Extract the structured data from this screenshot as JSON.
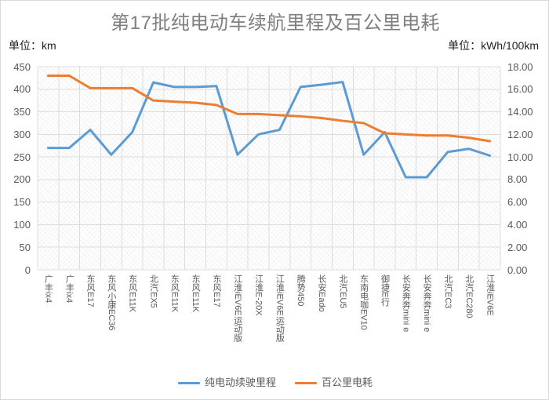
{
  "title": "第17批纯电动车续航里程及百公里电耗",
  "unit_left": "单位：km",
  "unit_right": "单位：kWh/100km",
  "colors": {
    "range_series": "#5B9BD5",
    "consumption_series": "#ED7D31",
    "gridline": "#dcdcdc",
    "title_text": "#7f7f7f",
    "axis_text": "#595959"
  },
  "chart_data": {
    "type": "line",
    "categories": [
      "广丰ix4",
      "广丰ix4",
      "东风E17",
      "东风小康EC36",
      "东风E11K",
      "北汽EX5",
      "东风E11K",
      "东风E11K",
      "东风E17",
      "江淮iEV6E运动版",
      "江淮E-20X",
      "江淮iEV6E运动版",
      "腾势450",
      "长安Eado",
      "北汽EU5",
      "东南电咖EV10",
      "御捷E行",
      "长安奔奔mini e",
      "长安奔奔mini e",
      "北汽EC3",
      "北汽EC280",
      "江淮iEV6E"
    ],
    "series": [
      {
        "id": "range",
        "name": "纯电动续驶里程",
        "axis": "left",
        "color": "#5B9BD5",
        "values": [
          270,
          270,
          310,
          255,
          305,
          415,
          405,
          405,
          407,
          255,
          300,
          310,
          405,
          410,
          416,
          255,
          305,
          205,
          205,
          261,
          268,
          253
        ]
      },
      {
        "id": "consumption",
        "name": "百公里电耗",
        "axis": "right",
        "color": "#ED7D31",
        "values": [
          17.2,
          17.2,
          16.1,
          16.1,
          16.1,
          15.0,
          14.9,
          14.8,
          14.6,
          13.8,
          13.8,
          13.7,
          13.6,
          13.45,
          13.2,
          13.0,
          12.1,
          12.0,
          11.9,
          11.9,
          11.7,
          11.4
        ]
      }
    ],
    "left_axis": {
      "min": 0,
      "max": 450,
      "step": 50,
      "ticks": [
        "450",
        "400",
        "350",
        "300",
        "250",
        "200",
        "150",
        "100",
        "50",
        "0"
      ]
    },
    "right_axis": {
      "min": 0,
      "max": 18,
      "step": 2,
      "ticks": [
        "18.00",
        "16.00",
        "14.00",
        "12.00",
        "10.00",
        "8.00",
        "6.00",
        "4.00",
        "2.00",
        "0.00"
      ]
    },
    "grid": true,
    "legend_position": "bottom"
  }
}
